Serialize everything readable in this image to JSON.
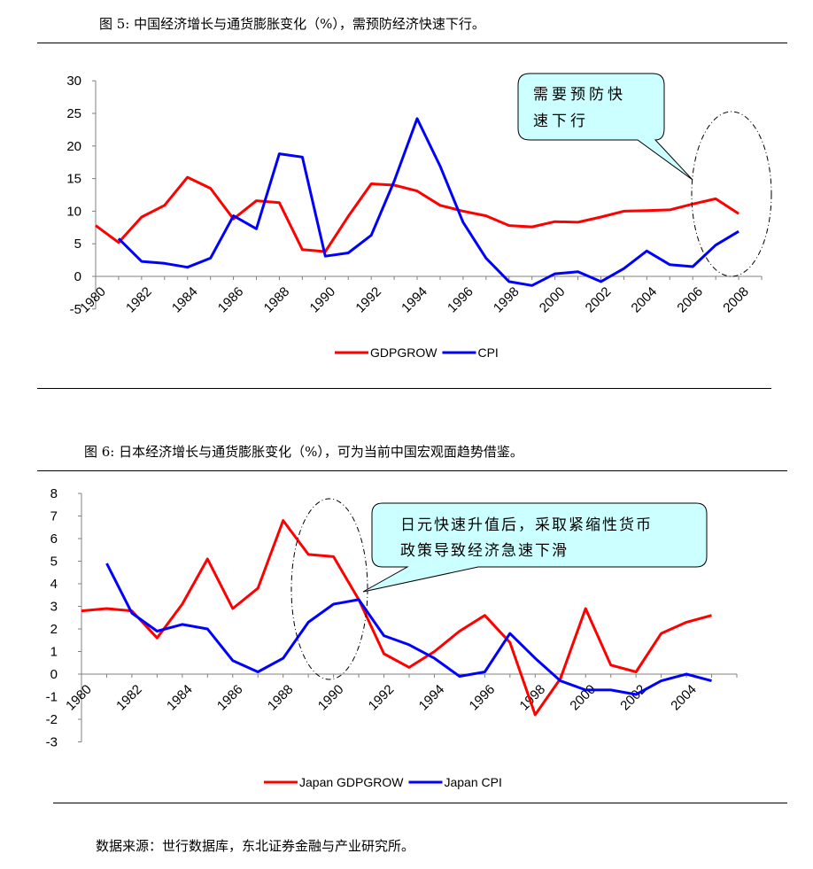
{
  "captions": {
    "fig5": "图 5:   中国经济增长与通货膨胀变化（%），需预防经济快速下行。",
    "fig6": "图 6:   日本经济增长与通货膨胀变化（%），可为当前中国宏观面趋势借鉴。",
    "source": "数据来源：世行数据库，东北证券金融与产业研究所。"
  },
  "chart_data": [
    {
      "type": "line",
      "title": "",
      "ylim": [
        -5,
        30
      ],
      "yticks": [
        -5,
        0,
        5,
        10,
        15,
        20,
        25,
        30
      ],
      "xticks": [
        "1980",
        "1982",
        "1984",
        "1986",
        "1988",
        "1990",
        "1992",
        "1994",
        "1996",
        "1998",
        "2000",
        "2002",
        "2004",
        "2006",
        "2008"
      ],
      "legend_position": "bottom",
      "callout": [
        "需要预防快",
        "速下行"
      ],
      "series": [
        {
          "name": "GDPGROW",
          "color": "#ff0000",
          "x": [
            1980,
            1981,
            1982,
            1983,
            1984,
            1985,
            1986,
            1987,
            1988,
            1989,
            1990,
            1991,
            1992,
            1993,
            1994,
            1995,
            1996,
            1997,
            1998,
            1999,
            2000,
            2001,
            2002,
            2003,
            2004,
            2005,
            2006,
            2007,
            2008
          ],
          "values": [
            7.8,
            5.2,
            9.1,
            10.9,
            15.2,
            13.5,
            8.8,
            11.6,
            11.3,
            4.1,
            3.8,
            9.2,
            14.2,
            14.0,
            13.1,
            10.9,
            10.0,
            9.3,
            7.8,
            7.6,
            8.4,
            8.3,
            9.1,
            10.0,
            10.1,
            10.2,
            11.1,
            11.9,
            9.6
          ]
        },
        {
          "name": "CPI",
          "color": "#0000ff",
          "x": [
            1981,
            1982,
            1983,
            1984,
            1985,
            1986,
            1987,
            1988,
            1989,
            1990,
            1991,
            1992,
            1993,
            1994,
            1995,
            1996,
            1997,
            1998,
            1999,
            2000,
            2001,
            2002,
            2003,
            2004,
            2005,
            2006,
            2007,
            2008
          ],
          "values": [
            5.8,
            2.3,
            2.0,
            1.4,
            2.8,
            9.3,
            7.3,
            18.8,
            18.3,
            3.1,
            3.6,
            6.3,
            14.6,
            24.2,
            16.9,
            8.3,
            2.8,
            -0.8,
            -1.4,
            0.4,
            0.7,
            -0.8,
            1.2,
            3.9,
            1.8,
            1.5,
            4.8,
            6.9
          ]
        }
      ]
    },
    {
      "type": "line",
      "title": "",
      "ylim": [
        -3,
        8
      ],
      "yticks": [
        -3,
        -2,
        -1,
        0,
        1,
        2,
        3,
        4,
        5,
        6,
        7,
        8
      ],
      "xticks": [
        "1980",
        "1982",
        "1984",
        "1986",
        "1988",
        "1990",
        "1992",
        "1994",
        "1996",
        "1998",
        "2000",
        "2002",
        "2004"
      ],
      "legend_position": "bottom",
      "callout": [
        "日元快速升值后，采取紧缩性货币",
        "政策导致经济急速下滑"
      ],
      "series": [
        {
          "name": "Japan GDPGROW",
          "color": "#ff0000",
          "x": [
            1980,
            1981,
            1982,
            1983,
            1984,
            1985,
            1986,
            1987,
            1988,
            1989,
            1990,
            1991,
            1992,
            1993,
            1994,
            1995,
            1996,
            1997,
            1998,
            1999,
            2000,
            2001,
            2002,
            2003,
            2004,
            2005
          ],
          "values": [
            2.8,
            2.9,
            2.8,
            1.6,
            3.1,
            5.1,
            2.9,
            3.8,
            6.8,
            5.3,
            5.2,
            3.3,
            0.9,
            0.3,
            1.0,
            1.9,
            2.6,
            1.4,
            -1.8,
            -0.2,
            2.9,
            0.4,
            0.1,
            1.8,
            2.3,
            2.6
          ]
        },
        {
          "name": "Japan CPI",
          "color": "#0000ff",
          "x": [
            1981,
            1982,
            1983,
            1984,
            1985,
            1986,
            1987,
            1988,
            1989,
            1990,
            1991,
            1992,
            1993,
            1994,
            1995,
            1996,
            1997,
            1998,
            1999,
            2000,
            2001,
            2002,
            2003,
            2004,
            2005
          ],
          "values": [
            4.9,
            2.7,
            1.9,
            2.2,
            2.0,
            0.6,
            0.1,
            0.7,
            2.3,
            3.1,
            3.3,
            1.7,
            1.3,
            0.7,
            -0.1,
            0.1,
            1.8,
            0.7,
            -0.3,
            -0.7,
            -0.7,
            -0.9,
            -0.3,
            0.0,
            -0.3
          ]
        }
      ]
    }
  ]
}
